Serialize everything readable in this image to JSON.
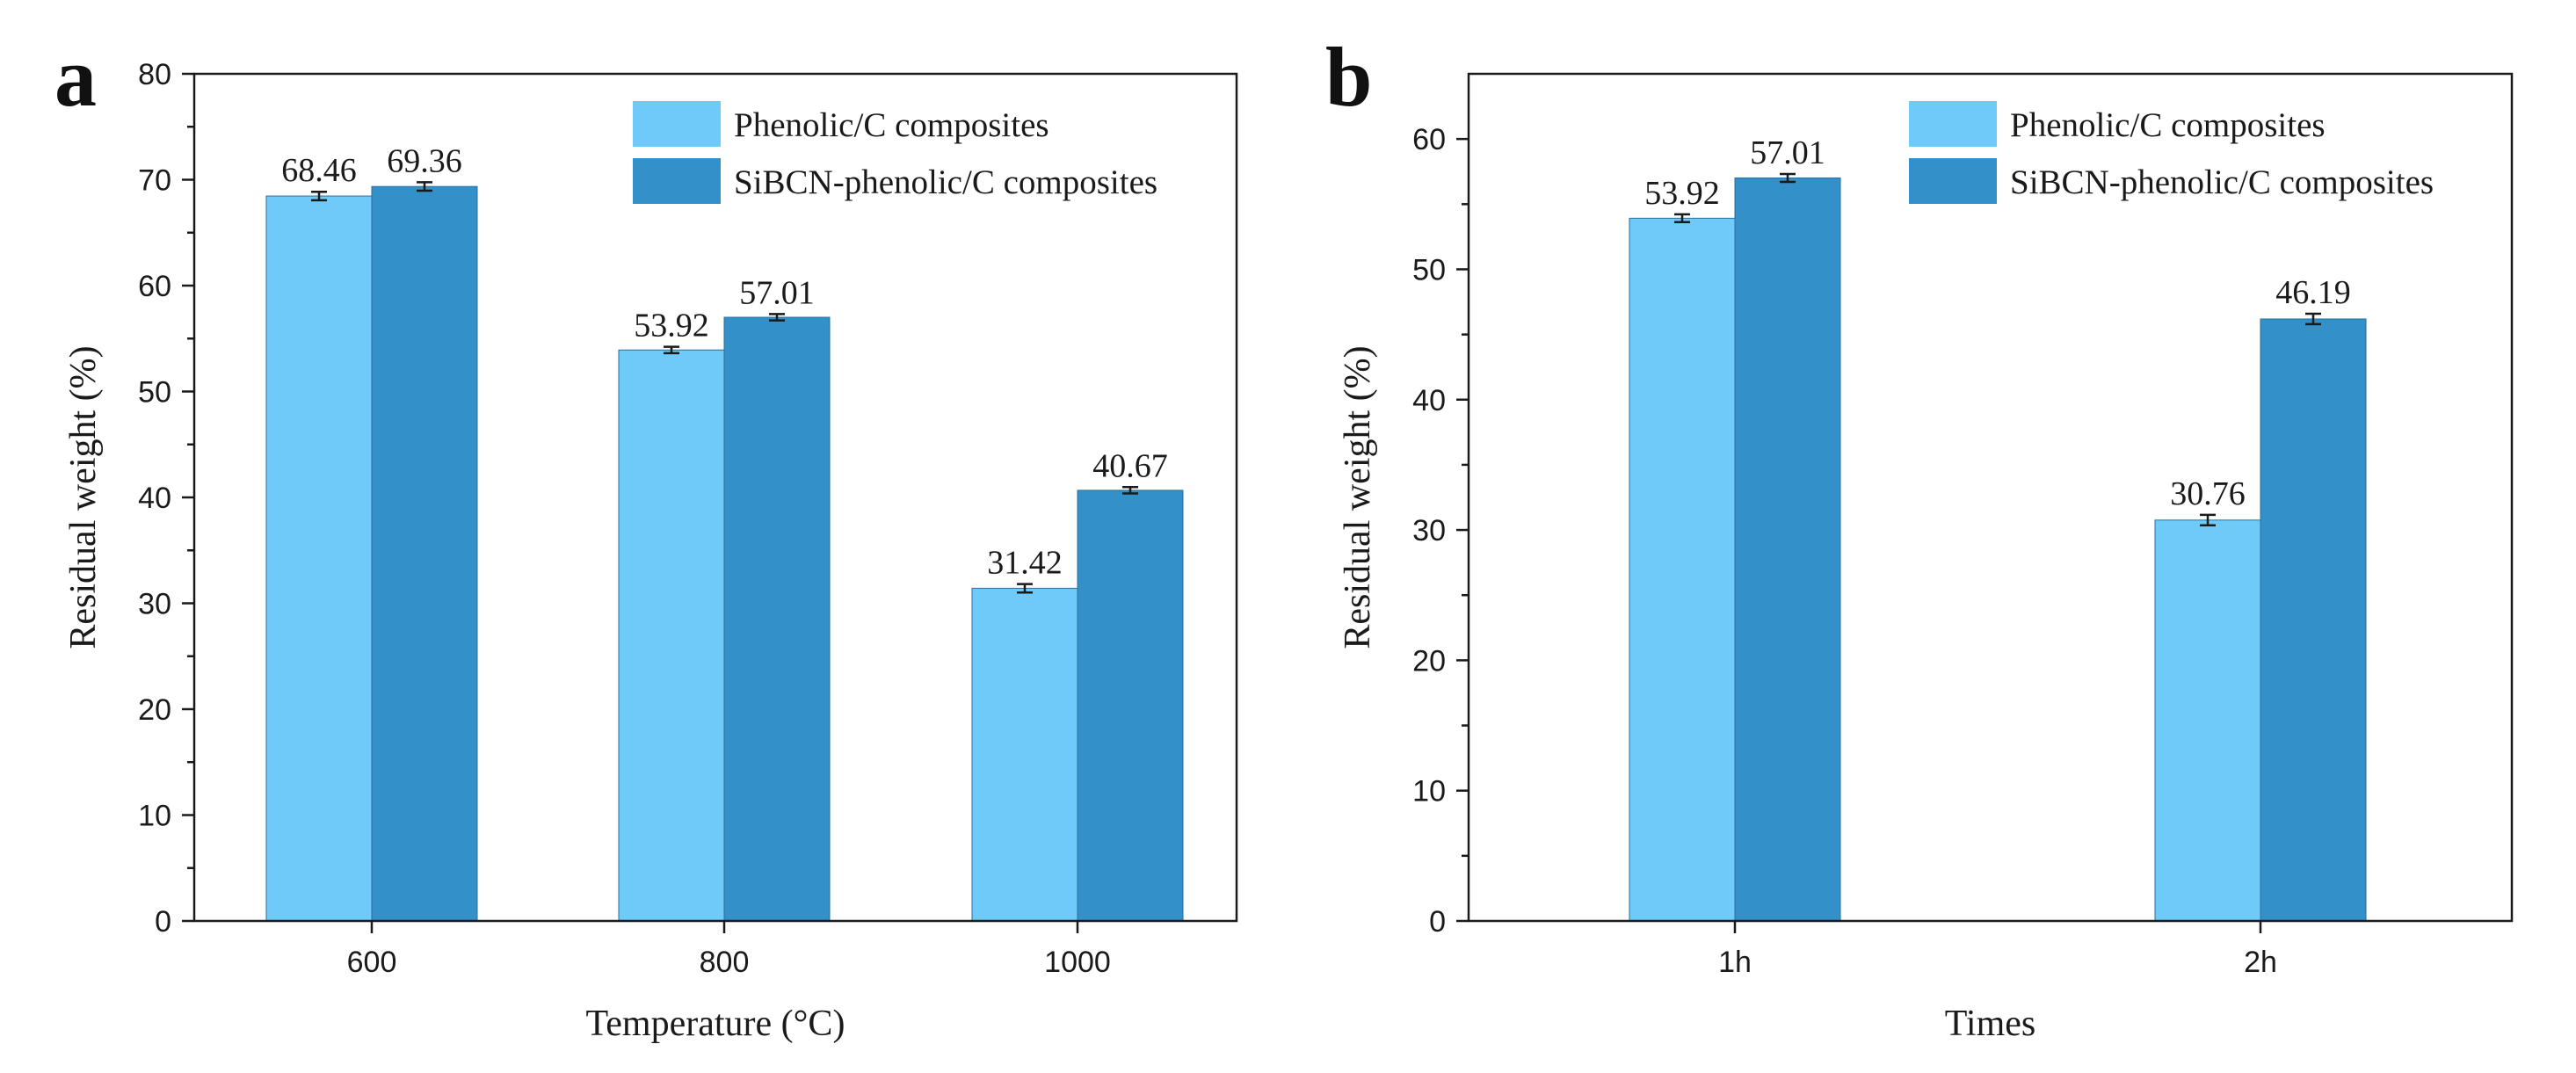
{
  "chart_data": [
    {
      "type": "bar",
      "panel_label": "a",
      "categories": [
        "600",
        "800",
        "1000"
      ],
      "series": [
        {
          "name": "Phenolic/C composites",
          "values": [
            68.46,
            53.92,
            31.42
          ],
          "labels": [
            "68.46",
            "53.92",
            "31.42"
          ],
          "error": [
            0.4,
            0.3,
            0.4
          ],
          "color": "#6ecbf9"
        },
        {
          "name": "SiBCN-phenolic/C composites",
          "values": [
            69.36,
            57.01,
            40.67
          ],
          "labels": [
            "69.36",
            "57.01",
            "40.67"
          ],
          "error": [
            0.4,
            0.3,
            0.3
          ],
          "color": "#3490c8"
        }
      ],
      "xlabel": "Temperature (°C)",
      "ylabel": "Residual weight (%)",
      "ylim": [
        0,
        80
      ],
      "yticks": [
        0,
        10,
        20,
        30,
        40,
        50,
        60,
        70,
        80
      ],
      "ytick_labels": [
        "0",
        "10",
        "20",
        "30",
        "40",
        "50",
        "60",
        "70",
        "80"
      ],
      "legend": "top-right",
      "grid": false
    },
    {
      "type": "bar",
      "panel_label": "b",
      "categories": [
        "1h",
        "2h"
      ],
      "series": [
        {
          "name": "Phenolic/C composites",
          "values": [
            53.92,
            30.76
          ],
          "labels": [
            "53.92",
            "30.76"
          ],
          "error": [
            0.3,
            0.4
          ],
          "color": "#6ecbf9"
        },
        {
          "name": "SiBCN-phenolic/C composites",
          "values": [
            57.01,
            46.19
          ],
          "labels": [
            "57.01",
            "46.19"
          ],
          "error": [
            0.3,
            0.4
          ],
          "color": "#3490c8"
        }
      ],
      "xlabel": "Times",
      "ylabel": "Residual weight (%)",
      "ylim": [
        0,
        65
      ],
      "yticks": [
        0,
        10,
        20,
        30,
        40,
        50,
        60
      ],
      "ytick_labels": [
        "0",
        "10",
        "20",
        "30",
        "40",
        "50",
        "60"
      ],
      "legend": "top-right",
      "grid": false
    }
  ]
}
